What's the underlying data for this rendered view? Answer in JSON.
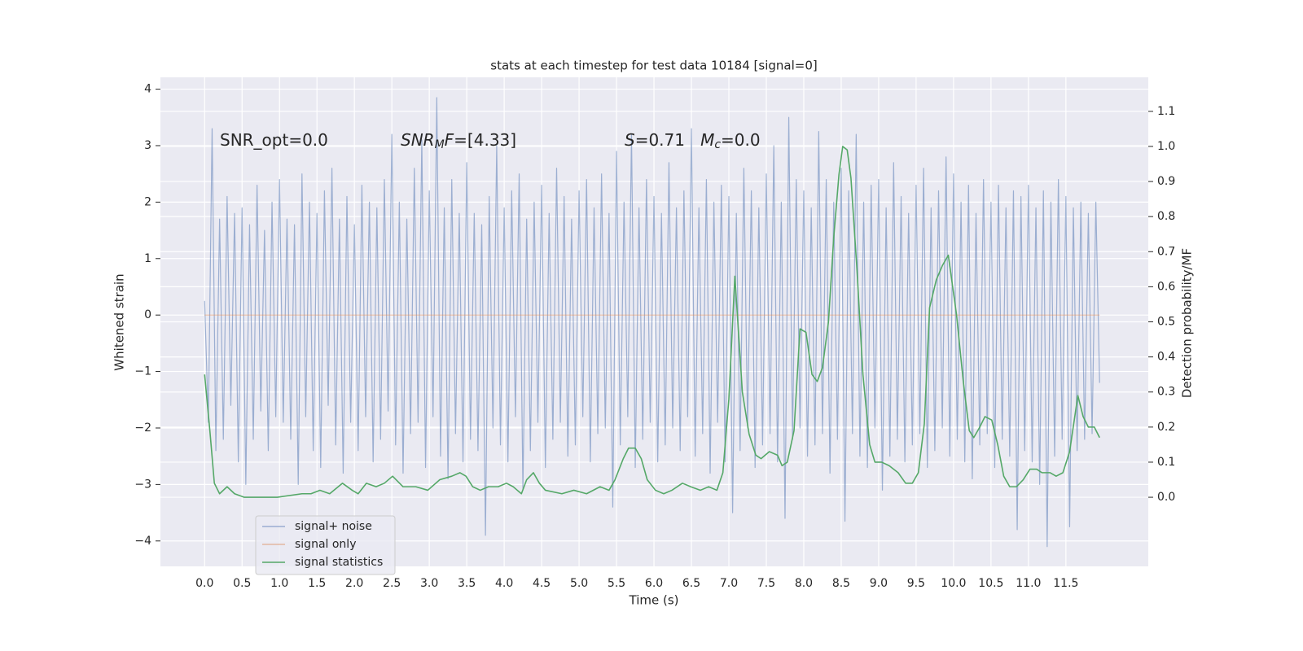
{
  "chart_data": {
    "type": "line",
    "title": "stats at each timestep for test data 10184 [signal=0]",
    "x_label": "Time (s)",
    "y_label": "Whitened strain",
    "y2_label": "Detection probability/MF",
    "annotations": [
      {
        "parts": [
          {
            "text": "SNR_opt=0.0"
          }
        ]
      },
      {
        "parts": [
          {
            "text": "SNR",
            "style": "italic"
          },
          {
            "text": "M",
            "style": "sub"
          },
          {
            "text": "F",
            "style": "italic"
          },
          {
            "text": "=[4.33]"
          }
        ]
      },
      {
        "parts": [
          {
            "text": "S",
            "style": "italic"
          },
          {
            "text": "=0.71   "
          },
          {
            "text": "M",
            "style": "italic"
          },
          {
            "text": "c",
            "style": "sub"
          },
          {
            "text": "=0.0"
          }
        ]
      }
    ],
    "grid": true,
    "legend": "lower left",
    "xlim": [
      -0.59,
      12.6
    ],
    "ylim": [
      -4.45,
      4.21
    ],
    "y2lim": [
      -0.197,
      1.197
    ],
    "xticks": [
      {
        "value": 0,
        "label": "0.0"
      },
      0.5,
      {
        "value": 1,
        "label": "1.0"
      },
      1.5,
      {
        "value": 2,
        "label": "2.0"
      },
      2.5,
      {
        "value": 3,
        "label": "3.0"
      },
      3.5,
      {
        "value": 4,
        "label": "4.0"
      },
      4.5,
      {
        "value": 5,
        "label": "5.0"
      },
      5.5,
      {
        "value": 6,
        "label": "6.0"
      },
      6.5,
      {
        "value": 7,
        "label": "7.0"
      },
      7.5,
      {
        "value": 8,
        "label": "8.0"
      },
      8.5,
      {
        "value": 9,
        "label": "9.0"
      },
      9.5,
      {
        "value": 10,
        "label": "10.0"
      },
      10.5,
      {
        "value": 11,
        "label": "11.0"
      },
      11.5
    ],
    "yticks": [
      {
        "value": -4,
        "label": "−4"
      },
      {
        "value": -3,
        "label": "−3"
      },
      {
        "value": -2,
        "label": "−2"
      },
      {
        "value": -1,
        "label": "−1"
      },
      0,
      1,
      2,
      3,
      4
    ],
    "y2ticks": [
      {
        "value": 0,
        "label": "0.0"
      },
      0.1,
      0.2,
      0.3,
      0.4,
      0.5,
      0.6,
      0.7,
      0.8,
      0.9,
      {
        "value": 1,
        "label": "1.0"
      },
      1.1
    ],
    "series": [
      {
        "name": "signal+ noise",
        "color": "#4c72b0",
        "opacity": 0.5,
        "x": [
          0,
          0.05,
          0.1,
          0.15,
          0.2,
          0.25,
          0.3,
          0.35,
          0.4,
          0.45,
          0.5,
          0.55,
          0.6,
          0.65,
          0.7,
          0.75,
          0.8,
          0.85,
          0.9,
          0.95,
          1,
          1.05,
          1.1,
          1.15,
          1.2,
          1.25,
          1.3,
          1.35,
          1.4,
          1.45,
          1.5,
          1.55,
          1.6,
          1.65,
          1.7,
          1.75,
          1.8,
          1.85,
          1.9,
          1.95,
          2,
          2.05,
          2.1,
          2.15,
          2.2,
          2.25,
          2.3,
          2.35,
          2.4,
          2.45,
          2.5,
          2.55,
          2.6,
          2.65,
          2.7,
          2.75,
          2.8,
          2.85,
          2.9,
          2.95,
          3,
          3.05,
          3.1,
          3.15,
          3.2,
          3.25,
          3.3,
          3.35,
          3.4,
          3.45,
          3.5,
          3.55,
          3.6,
          3.65,
          3.7,
          3.75,
          3.8,
          3.85,
          3.9,
          3.95,
          4,
          4.05,
          4.1,
          4.15,
          4.2,
          4.25,
          4.3,
          4.35,
          4.4,
          4.45,
          4.5,
          4.55,
          4.6,
          4.65,
          4.7,
          4.75,
          4.8,
          4.85,
          4.9,
          4.95,
          5,
          5.05,
          5.1,
          5.15,
          5.2,
          5.25,
          5.3,
          5.35,
          5.4,
          5.45,
          5.5,
          5.55,
          5.6,
          5.65,
          5.7,
          5.75,
          5.8,
          5.85,
          5.9,
          5.95,
          6,
          6.05,
          6.1,
          6.15,
          6.2,
          6.25,
          6.3,
          6.35,
          6.4,
          6.45,
          6.5,
          6.55,
          6.6,
          6.65,
          6.7,
          6.75,
          6.8,
          6.85,
          6.9,
          6.95,
          7,
          7.05,
          7.1,
          7.15,
          7.2,
          7.25,
          7.3,
          7.35,
          7.4,
          7.45,
          7.5,
          7.55,
          7.6,
          7.65,
          7.7,
          7.75,
          7.8,
          7.85,
          7.9,
          7.95,
          8,
          8.05,
          8.1,
          8.15,
          8.2,
          8.25,
          8.3,
          8.35,
          8.4,
          8.45,
          8.5,
          8.55,
          8.6,
          8.65,
          8.7,
          8.75,
          8.8,
          8.85,
          8.9,
          8.95,
          9,
          9.05,
          9.1,
          9.15,
          9.2,
          9.25,
          9.3,
          9.35,
          9.4,
          9.45,
          9.5,
          9.55,
          9.6,
          9.65,
          9.7,
          9.75,
          9.8,
          9.85,
          9.9,
          9.95,
          10,
          10.05,
          10.1,
          10.15,
          10.2,
          10.25,
          10.3,
          10.35,
          10.4,
          10.45,
          10.5,
          10.55,
          10.6,
          10.65,
          10.7,
          10.75,
          10.8,
          10.85,
          10.9,
          10.95,
          11,
          11.05,
          11.1,
          11.15,
          11.2,
          11.25,
          11.3,
          11.35,
          11.4,
          11.45,
          11.5,
          11.55,
          11.6,
          11.65,
          11.7,
          11.75,
          11.8,
          11.85,
          11.9,
          11.95
        ],
        "values": [
          0.25,
          -1.9,
          3.3,
          -2.4,
          1.7,
          -2.2,
          2.1,
          -1.6,
          1.8,
          -2.6,
          1.9,
          -3.0,
          1.6,
          -2.2,
          2.3,
          -1.7,
          1.5,
          -2.4,
          2.0,
          -1.8,
          2.4,
          -1.9,
          1.7,
          -2.2,
          1.6,
          -3.0,
          2.5,
          -1.8,
          2.0,
          -2.4,
          1.8,
          -2.7,
          2.2,
          -1.6,
          2.6,
          -2.3,
          1.7,
          -2.8,
          2.1,
          -1.9,
          1.6,
          -2.4,
          2.3,
          -1.8,
          2.0,
          -2.6,
          1.9,
          -2.2,
          2.4,
          -1.7,
          3.2,
          -2.3,
          2.0,
          -2.8,
          1.7,
          -2.1,
          2.6,
          -1.9,
          3.1,
          -2.7,
          2.2,
          -1.8,
          3.85,
          -2.5,
          1.9,
          -2.9,
          2.4,
          -2.1,
          1.8,
          -2.6,
          2.7,
          -2.2,
          1.8,
          -2.4,
          1.6,
          -3.9,
          2.1,
          -2.0,
          3.0,
          -2.3,
          1.9,
          -2.6,
          2.2,
          -1.8,
          2.5,
          -3.1,
          1.7,
          -2.4,
          2.0,
          -1.9,
          2.3,
          -2.7,
          1.8,
          -2.2,
          2.6,
          -1.9,
          2.1,
          -2.5,
          1.7,
          -2.3,
          2.2,
          -1.8,
          2.4,
          -2.6,
          1.9,
          -2.1,
          2.5,
          -2.0,
          1.8,
          -3.4,
          2.9,
          -2.3,
          2.0,
          -1.8,
          3.2,
          -2.7,
          1.9,
          -2.2,
          2.4,
          -1.9,
          2.1,
          -2.6,
          1.8,
          -2.3,
          2.7,
          -2.0,
          1.9,
          -2.4,
          2.2,
          -1.8,
          3.3,
          -2.5,
          1.9,
          -2.1,
          2.4,
          -2.8,
          2.0,
          -1.9,
          2.3,
          -2.6,
          2.1,
          -3.5,
          1.8,
          -2.4,
          2.6,
          -2.0,
          2.2,
          -2.7,
          1.9,
          -2.3,
          2.5,
          -2.1,
          3.0,
          -2.6,
          2.0,
          -3.6,
          3.5,
          -2.2,
          2.4,
          -2.0,
          2.2,
          -2.5,
          1.9,
          -2.3,
          3.25,
          -2.1,
          2.4,
          -2.8,
          2.0,
          -2.2,
          2.6,
          -3.65,
          2.2,
          -2.1,
          3.2,
          -2.5,
          2.0,
          -2.7,
          2.3,
          -2.0,
          2.4,
          -3.1,
          1.9,
          -2.5,
          2.7,
          -2.2,
          2.1,
          -2.6,
          1.8,
          -2.3,
          2.3,
          -2.1,
          2.6,
          -2.7,
          1.9,
          -2.4,
          2.2,
          -2.0,
          2.8,
          -2.5,
          2.5,
          -2.2,
          2.0,
          -2.6,
          2.3,
          -2.9,
          1.8,
          -2.3,
          2.4,
          -2.1,
          2.0,
          -2.7,
          2.3,
          -2.2,
          1.9,
          -2.5,
          2.2,
          -3.8,
          2.1,
          -2.4,
          2.3,
          -2.6,
          1.9,
          -3.0,
          2.2,
          -4.1,
          2.0,
          -2.5,
          2.4,
          -2.2,
          2.1,
          -3.75,
          1.9,
          -2.4,
          2.0,
          -2.2,
          1.8,
          -2.1,
          2.0,
          -1.2
        ]
      },
      {
        "name": "signal only",
        "color": "#dd8452",
        "opacity": 0.5,
        "x": [
          0,
          11.95
        ],
        "values": [
          0,
          0
        ]
      },
      {
        "name": "signal statistics",
        "color": "#55a868",
        "opacity": 1,
        "axis": "y2",
        "x": [
          0,
          0.07,
          0.13,
          0.2,
          0.3,
          0.4,
          0.53,
          0.97,
          1.3,
          1.42,
          1.54,
          1.67,
          1.84,
          1.97,
          2.05,
          2.16,
          2.29,
          2.4,
          2.51,
          2.65,
          2.82,
          2.98,
          3.14,
          3.3,
          3.41,
          3.49,
          3.58,
          3.68,
          3.79,
          3.92,
          4.03,
          4.12,
          4.23,
          4.3,
          4.39,
          4.47,
          4.55,
          4.77,
          4.93,
          5.1,
          5.28,
          5.4,
          5.48,
          5.59,
          5.66,
          5.75,
          5.83,
          5.91,
          6.02,
          6.13,
          6.24,
          6.38,
          6.49,
          6.62,
          6.73,
          6.84,
          6.92,
          7.0,
          7.08,
          7.18,
          7.27,
          7.36,
          7.43,
          7.54,
          7.65,
          7.71,
          7.78,
          7.87,
          7.95,
          8.03,
          8.11,
          8.18,
          8.25,
          8.33,
          8.4,
          8.47,
          8.52,
          8.58,
          8.63,
          8.71,
          8.79,
          8.88,
          8.95,
          9.04,
          9.14,
          9.26,
          9.36,
          9.45,
          9.53,
          9.61,
          9.68,
          9.77,
          9.85,
          9.93,
          10.04,
          10.13,
          10.21,
          10.27,
          10.35,
          10.42,
          10.51,
          10.59,
          10.67,
          10.75,
          10.84,
          10.93,
          11.02,
          11.11,
          11.18,
          11.29,
          11.37,
          11.46,
          11.55,
          11.66,
          11.73,
          11.8,
          11.88,
          11.95
        ],
        "values": [
          0.35,
          0.19,
          0.04,
          0.01,
          0.03,
          0.01,
          0.0,
          0.0,
          0.01,
          0.01,
          0.02,
          0.01,
          0.04,
          0.02,
          0.01,
          0.04,
          0.03,
          0.04,
          0.06,
          0.03,
          0.03,
          0.02,
          0.05,
          0.06,
          0.07,
          0.06,
          0.03,
          0.02,
          0.03,
          0.03,
          0.04,
          0.03,
          0.01,
          0.05,
          0.07,
          0.04,
          0.02,
          0.01,
          0.02,
          0.01,
          0.03,
          0.02,
          0.05,
          0.11,
          0.14,
          0.14,
          0.11,
          0.05,
          0.02,
          0.01,
          0.02,
          0.04,
          0.03,
          0.02,
          0.03,
          0.02,
          0.07,
          0.28,
          0.63,
          0.3,
          0.18,
          0.12,
          0.11,
          0.13,
          0.12,
          0.09,
          0.1,
          0.19,
          0.48,
          0.47,
          0.35,
          0.33,
          0.37,
          0.5,
          0.74,
          0.92,
          1.0,
          0.99,
          0.91,
          0.65,
          0.35,
          0.15,
          0.1,
          0.1,
          0.09,
          0.07,
          0.04,
          0.04,
          0.07,
          0.21,
          0.54,
          0.62,
          0.66,
          0.69,
          0.52,
          0.33,
          0.19,
          0.17,
          0.2,
          0.23,
          0.22,
          0.15,
          0.06,
          0.03,
          0.03,
          0.05,
          0.08,
          0.08,
          0.07,
          0.07,
          0.06,
          0.07,
          0.13,
          0.29,
          0.23,
          0.2,
          0.2,
          0.17
        ]
      }
    ]
  }
}
